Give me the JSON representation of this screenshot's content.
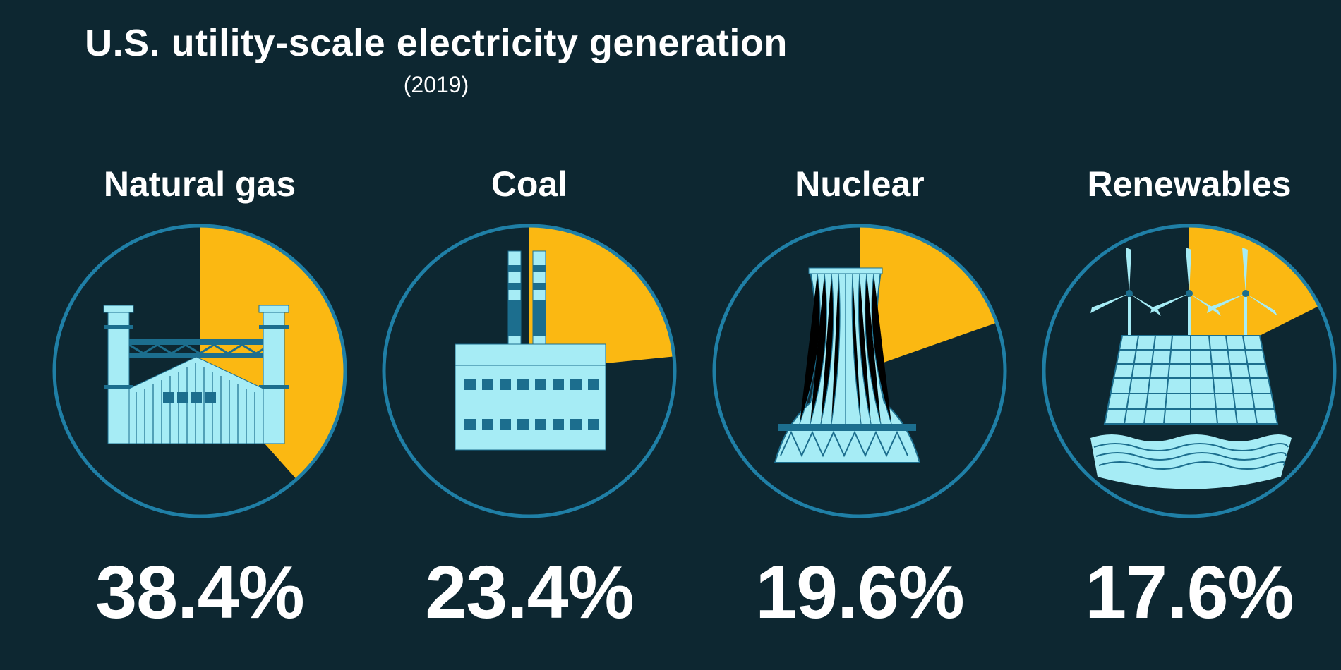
{
  "chart_data": {
    "type": "pie",
    "title": "U.S. utility-scale electricity generation",
    "subtitle": "(2019)",
    "categories": [
      "Natural gas",
      "Coal",
      "Nuclear",
      "Renewables"
    ],
    "values": [
      38.4,
      23.4,
      19.6,
      17.6
    ],
    "value_labels": [
      "38.4%",
      "23.4%",
      "19.6%",
      "17.6%"
    ],
    "icons": [
      "gas-power-plant-icon",
      "coal-factory-icon",
      "nuclear-cooling-tower-icon",
      "wind-solar-hydro-icon"
    ],
    "colors": {
      "background": "#0d2731",
      "slice": "#fbb812",
      "ring": "#1f7fa6",
      "icon_fill": "#a6ecf5",
      "icon_dark": "#1c6e8e",
      "text": "#ffffff"
    }
  }
}
